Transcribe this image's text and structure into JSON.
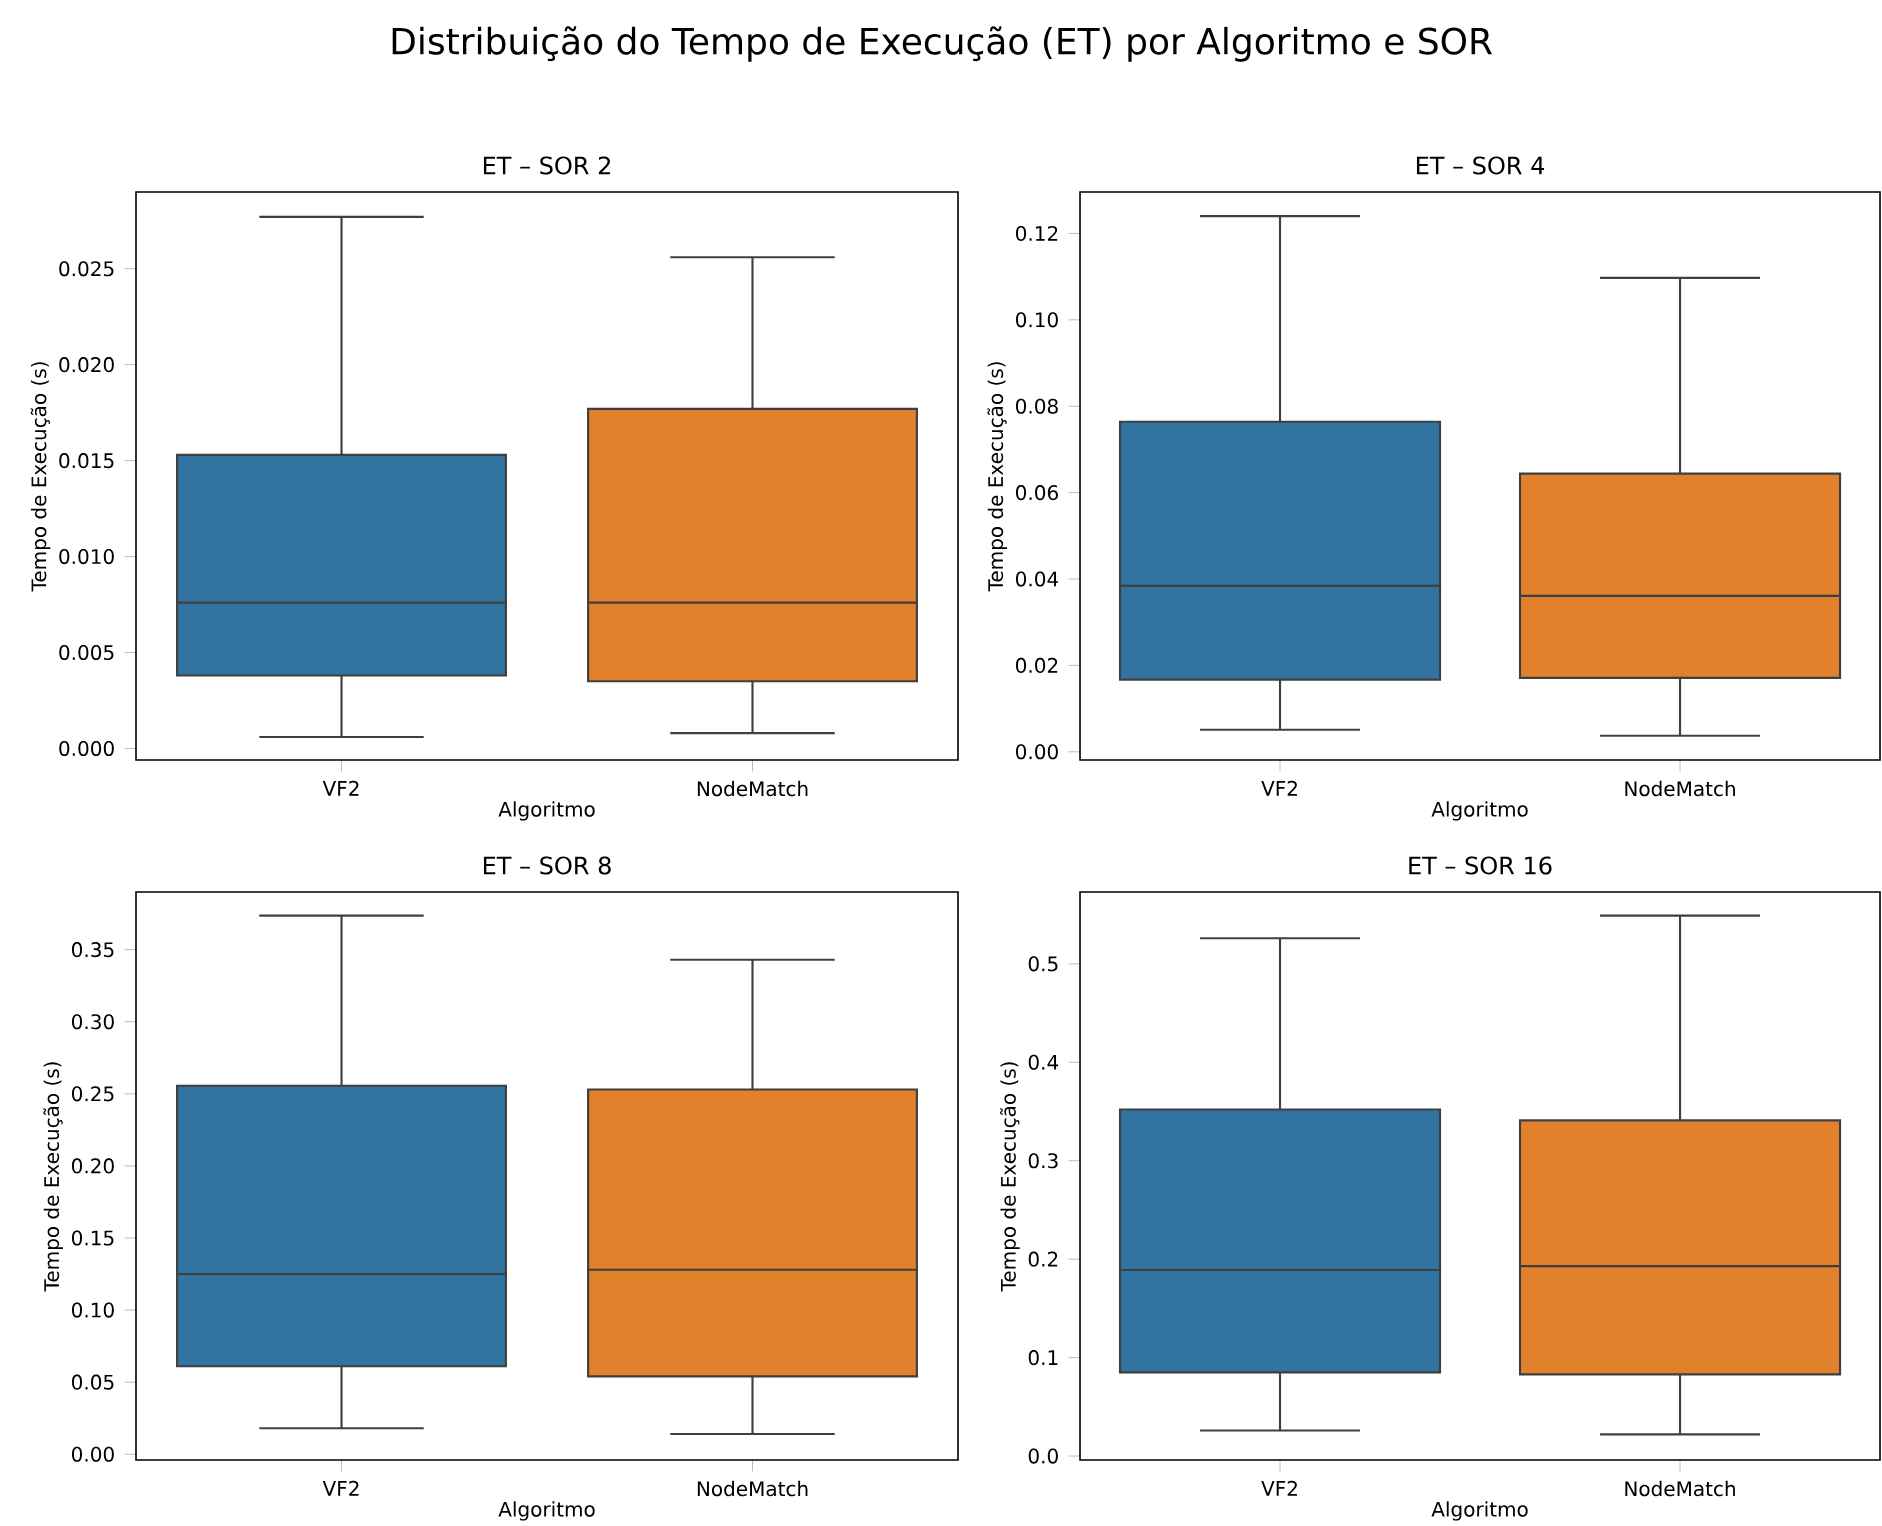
{
  "chart_data": [
    {
      "type": "box",
      "title": "ET – SOR 2",
      "xlabel": "Algoritmo",
      "ylabel": "Tempo de Execução (s)",
      "categories": [
        "VF2",
        "NodeMatch"
      ],
      "colors": [
        "#3274a1",
        "#e1812c"
      ],
      "annotations": [
        "Distribuição do Tempo de Execução (ET) por Algoritmo e SOR"
      ],
      "boxes": [
        {
          "low": 0.0006,
          "q1": 0.0038,
          "median": 0.0076,
          "q3": 0.0153,
          "high": 0.0277
        },
        {
          "low": 0.0008,
          "q1": 0.0035,
          "median": 0.0076,
          "q3": 0.0177,
          "high": 0.0256
        }
      ],
      "ylim": [
        -0.0006,
        0.029
      ],
      "yticks": [
        {
          "value": 0,
          "label": "0.000"
        },
        {
          "value": 0.005,
          "label": "0.005"
        },
        {
          "value": 0.01,
          "label": "0.010"
        },
        {
          "value": 0.015,
          "label": "0.015"
        },
        {
          "value": 0.02,
          "label": "0.020"
        },
        {
          "value": 0.025,
          "label": "0.025"
        }
      ]
    },
    {
      "type": "box",
      "title": "ET – SOR 4",
      "xlabel": "Algoritmo",
      "ylabel": "Tempo de Execução (s)",
      "categories": [
        "VF2",
        "NodeMatch"
      ],
      "colors": [
        "#3274a1",
        "#e1812c"
      ],
      "boxes": [
        {
          "low": 0.0051,
          "q1": 0.0167,
          "median": 0.0384,
          "q3": 0.0764,
          "high": 0.124
        },
        {
          "low": 0.0037,
          "q1": 0.0171,
          "median": 0.0361,
          "q3": 0.0644,
          "high": 0.1097
        }
      ],
      "ylim": [
        -0.0019,
        0.1296
      ],
      "yticks": [
        {
          "value": 0,
          "label": "0.00"
        },
        {
          "value": 0.02,
          "label": "0.02"
        },
        {
          "value": 0.04,
          "label": "0.04"
        },
        {
          "value": 0.06,
          "label": "0.06"
        },
        {
          "value": 0.08,
          "label": "0.08"
        },
        {
          "value": 0.1,
          "label": "0.10"
        },
        {
          "value": 0.12,
          "label": "0.12"
        }
      ]
    },
    {
      "type": "box",
      "title": "ET – SOR 8",
      "xlabel": "Algoritmo",
      "ylabel": "Tempo de Execução (s)",
      "categories": [
        "VF2",
        "NodeMatch"
      ],
      "colors": [
        "#3274a1",
        "#e1812c"
      ],
      "boxes": [
        {
          "low": 0.018,
          "q1": 0.061,
          "median": 0.125,
          "q3": 0.2556,
          "high": 0.3736
        },
        {
          "low": 0.014,
          "q1": 0.054,
          "median": 0.128,
          "q3": 0.253,
          "high": 0.343
        }
      ],
      "ylim": [
        -0.004,
        0.39
      ],
      "yticks": [
        {
          "value": 0,
          "label": "0.00"
        },
        {
          "value": 0.05,
          "label": "0.05"
        },
        {
          "value": 0.1,
          "label": "0.10"
        },
        {
          "value": 0.15,
          "label": "0.15"
        },
        {
          "value": 0.2,
          "label": "0.20"
        },
        {
          "value": 0.25,
          "label": "0.25"
        },
        {
          "value": 0.3,
          "label": "0.30"
        },
        {
          "value": 0.35,
          "label": "0.35"
        }
      ]
    },
    {
      "type": "box",
      "title": "ET – SOR 16",
      "xlabel": "Algoritmo",
      "ylabel": "Tempo de Execução (s)",
      "categories": [
        "VF2",
        "NodeMatch"
      ],
      "colors": [
        "#3274a1",
        "#e1812c"
      ],
      "boxes": [
        {
          "low": 0.026,
          "q1": 0.085,
          "median": 0.189,
          "q3": 0.352,
          "high": 0.526
        },
        {
          "low": 0.022,
          "q1": 0.083,
          "median": 0.193,
          "q3": 0.341,
          "high": 0.549
        }
      ],
      "ylim": [
        -0.004,
        0.573
      ],
      "yticks": [
        {
          "value": 0,
          "label": "0.0"
        },
        {
          "value": 0.1,
          "label": "0.1"
        },
        {
          "value": 0.2,
          "label": "0.2"
        },
        {
          "value": 0.3,
          "label": "0.3"
        },
        {
          "value": 0.4,
          "label": "0.4"
        },
        {
          "value": 0.5,
          "label": "0.5"
        }
      ]
    }
  ]
}
